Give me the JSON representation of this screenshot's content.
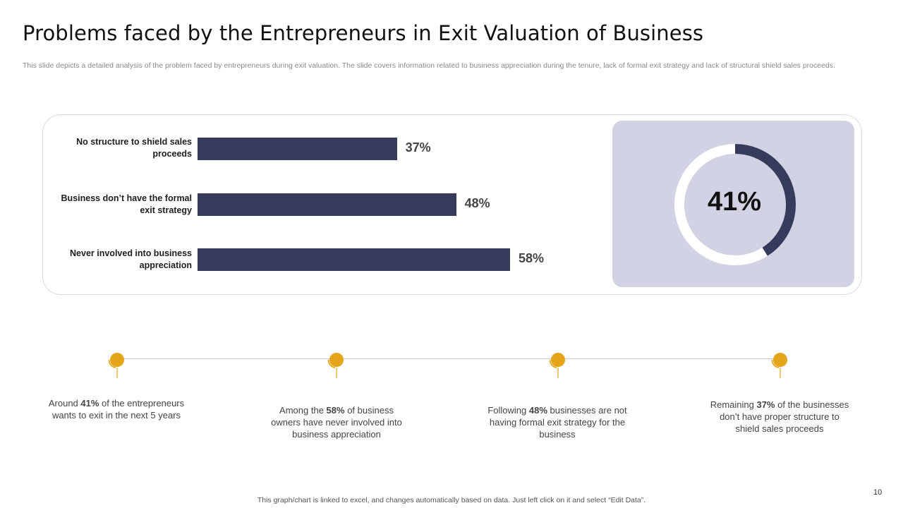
{
  "slide": {
    "title": "Problems faced by the Entrepreneurs in Exit Valuation of Business",
    "subtitle": "This slide depicts a detailed analysis of the problem faced by entrepreneurs during exit valuation. The slide covers information related to business appreciation during the tenure, lack of formal exit strategy and lack of structural shield sales proceeds.",
    "footer": "This graph/chart is linked to excel, and changes automatically based on data. Just left click on it and select “Edit Data”.",
    "page_number": "10"
  },
  "chart_data": [
    {
      "type": "bar",
      "orientation": "horizontal",
      "categories": [
        "No structure to shield sales proceeds",
        "Business don’t have the formal exit strategy",
        "Never involved into business appreciation"
      ],
      "values": [
        37,
        48,
        58
      ],
      "value_labels": [
        "37%",
        "48%",
        "58%"
      ],
      "xlim": [
        0,
        100
      ],
      "color": "#363a5b"
    },
    {
      "type": "pie",
      "style": "donut",
      "value": 41,
      "label": "41%",
      "colors": {
        "filled": "#363a5b",
        "remaining": "#ffffff"
      }
    }
  ],
  "timeline": {
    "accent": "#e5a51a",
    "items": [
      {
        "pre": "Around ",
        "bold": "41%",
        "post": " of the entrepreneurs wants to exit in the next 5 years"
      },
      {
        "pre": "Among the ",
        "bold": "58%",
        "post": " of business owners have never involved into business appreciation"
      },
      {
        "pre": "Following ",
        "bold": "48%",
        "post": " businesses are not having formal exit strategy for the business"
      },
      {
        "pre": "Remaining ",
        "bold": "37%",
        "post": " of the businesses don’t have proper structure to shield sales proceeds"
      }
    ]
  }
}
